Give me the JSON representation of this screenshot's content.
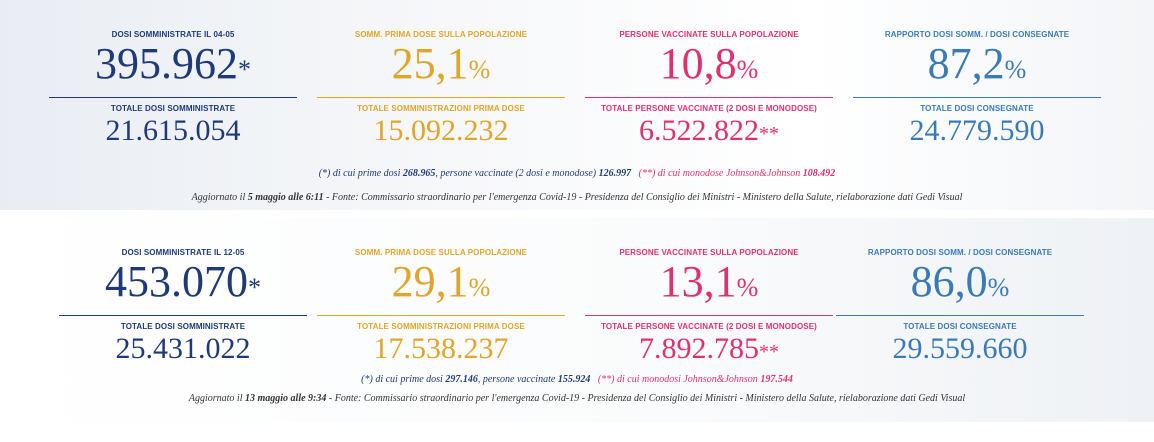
{
  "colors": {
    "navy": "#1e3a78",
    "gold": "#e0a52a",
    "pink": "#e0306f",
    "blue": "#3a7ab8"
  },
  "panels": [
    {
      "cols": [
        {
          "label": "Dosi somministrate il 04-05",
          "value": "395.962",
          "suffix": "*",
          "sublabel": "Totale dosi somministrate",
          "total": "21.615.054",
          "totalSuffix": ""
        },
        {
          "label": "Somm. prima dose sulla popolazione",
          "value": "25,1",
          "suffix": "%",
          "sublabel": "Totale somministrazioni prima dose",
          "total": "15.092.232",
          "totalSuffix": ""
        },
        {
          "label": "Persone vaccinate sulla popolazione",
          "value": "10,8",
          "suffix": "%",
          "sublabel": "Totale persone vaccinate (2 dosi e monodose)",
          "total": "6.522.822",
          "totalSuffix": "**"
        },
        {
          "label": "Rapporto dosi somm. / dosi consegnate",
          "value": "87,2",
          "suffix": "%",
          "sublabel": "Totale dosi consegnate",
          "total": "24.779.590",
          "totalSuffix": ""
        }
      ],
      "note1": {
        "a": "(*) di cui prime dosi ",
        "b": "268.965",
        "c": ", persone vaccinate (2 dosi e monodose) ",
        "d": "126.997",
        "e": "(**) di cui monodose Johnson&Johnson ",
        "f": "108.492"
      },
      "note2": {
        "a": "Aggiornato il ",
        "b": "5 maggio alle 6:11",
        "c": " - Fonte: Commissario straordinario per l'emergenza Covid-19 - Presidenza del Consiglio dei Ministri - Ministero della Salute, rielaborazione dati Gedi Visual"
      }
    },
    {
      "cols": [
        {
          "label": "Dosi somministrate il 12-05",
          "value": "453.070",
          "suffix": "*",
          "sublabel": "Totale dosi somministrate",
          "total": "25.431.022",
          "totalSuffix": ""
        },
        {
          "label": "Somm. prima dose sulla popolazione",
          "value": "29,1",
          "suffix": "%",
          "sublabel": "Totale somministrazioni prima dose",
          "total": "17.538.237",
          "totalSuffix": ""
        },
        {
          "label": "Persone vaccinate sulla popolazione",
          "value": "13,1",
          "suffix": "%",
          "sublabel": "Totale persone vaccinate (2 dosi e monodose)",
          "total": "7.892.785",
          "totalSuffix": "**"
        },
        {
          "label": "Rapporto dosi somm. / dosi consegnate",
          "value": "86,0",
          "suffix": "%",
          "sublabel": "Totale dosi consegnate",
          "total": "29.559.660",
          "totalSuffix": ""
        }
      ],
      "note1": {
        "a": "(*) di cui prime dosi ",
        "b": "297.146",
        "c": ", persone vaccinate ",
        "d": "155.924",
        "e": "(**) di cui monodosi Johnson&Johnson ",
        "f": "197.544"
      },
      "note2": {
        "a": "Aggiornato il ",
        "b": "13 maggio alle 9:34",
        "c": " - Fonte: Commissario straordinario per l'emergenza Covid-19 - Presidenza del Consiglio dei Ministri - Ministero della Salute, rielaborazione dati Gedi Visual"
      }
    }
  ]
}
